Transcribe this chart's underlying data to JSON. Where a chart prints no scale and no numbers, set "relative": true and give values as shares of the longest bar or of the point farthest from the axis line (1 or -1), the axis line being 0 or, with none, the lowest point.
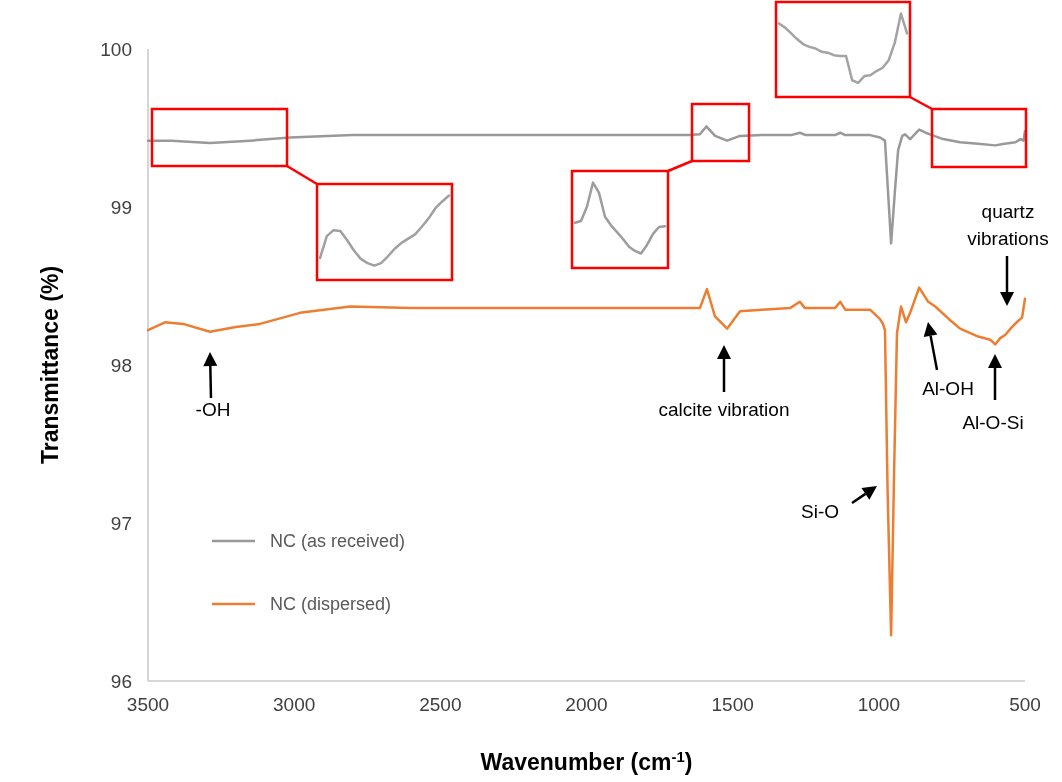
{
  "chart_data": [
    {
      "type": "line",
      "xlabel": "Wavenumber (cm$^{-1}$)",
      "ylabel": "Transmittance (%)",
      "xlim": [
        3500,
        500
      ],
      "ylim": [
        96,
        100
      ],
      "xticks": [
        3500,
        3000,
        2500,
        2000,
        1500,
        1000,
        500
      ],
      "yticks": [
        96,
        97,
        98,
        99,
        100
      ],
      "legend": "bottom left",
      "line_style": "solid",
      "series": [
        {
          "name": "NC (as received)",
          "color": "#999999",
          "x": [
            3500,
            3420,
            3288,
            3150,
            3014,
            2800,
            2500,
            2200,
            2000,
            1800,
            1650,
            1612,
            1590,
            1560,
            1519,
            1475,
            1400,
            1300,
            1270,
            1250,
            1150,
            1132,
            1115,
            1030,
            996,
            979,
            958,
            945,
            934,
            920,
            910,
            893,
            862,
            840,
            825,
            780,
            722,
            660,
            602,
            570,
            533,
            515,
            505,
            500
          ],
          "values": [
            99.42,
            99.42,
            99.405,
            99.42,
            99.44,
            99.455,
            99.455,
            99.455,
            99.455,
            99.455,
            99.455,
            99.46,
            99.51,
            99.45,
            99.42,
            99.45,
            99.455,
            99.455,
            99.47,
            99.455,
            99.455,
            99.47,
            99.455,
            99.455,
            99.44,
            99.42,
            98.77,
            99.1,
            99.36,
            99.45,
            99.46,
            99.43,
            99.49,
            99.47,
            99.46,
            99.43,
            99.41,
            99.4,
            99.39,
            99.4,
            99.41,
            99.43,
            99.42,
            99.48
          ]
        },
        {
          "name": "NC (dispersed)",
          "color": "#ed7d31",
          "x": [
            3500,
            3442,
            3380,
            3288,
            3200,
            3117,
            2980,
            2809,
            2600,
            2400,
            2200,
            2000,
            1800,
            1612,
            1588,
            1561,
            1519,
            1475,
            1400,
            1304,
            1270,
            1253,
            1150,
            1132,
            1115,
            1030,
            996,
            986,
            979,
            970,
            958,
            948,
            938,
            924,
            907,
            893,
            862,
            831,
            807,
            760,
            722,
            660,
            619,
            602,
            585,
            568,
            545,
            523,
            510,
            500
          ],
          "values": [
            98.22,
            98.27,
            98.26,
            98.21,
            98.24,
            98.26,
            98.33,
            98.37,
            98.36,
            98.36,
            98.36,
            98.36,
            98.36,
            98.36,
            98.48,
            98.31,
            98.23,
            98.34,
            98.35,
            98.36,
            98.4,
            98.36,
            98.36,
            98.4,
            98.35,
            98.35,
            98.29,
            98.26,
            98.22,
            97.2,
            96.29,
            97.3,
            98.2,
            98.37,
            98.27,
            98.33,
            98.49,
            98.4,
            98.37,
            98.29,
            98.23,
            98.18,
            98.16,
            98.13,
            98.17,
            98.19,
            98.24,
            98.28,
            98.3,
            98.42
          ]
        }
      ],
      "annotations": [
        "-OH",
        "calcite vibration",
        "Si-O",
        "Al-OH",
        "Al-O-Si",
        "quartz vibrations"
      ]
    },
    {
      "type": "line",
      "relative": true,
      "categories": [
        null,
        null,
        null,
        null,
        null,
        null,
        null,
        null,
        null,
        null,
        null,
        null,
        null,
        null,
        null,
        null,
        null,
        null,
        null,
        null
      ],
      "series": [
        {
          "color": "#a0a0a0",
          "values": [
            0.26,
            0.52,
            0.59,
            0.58,
            0.47,
            0.35,
            0.25,
            0.2,
            0.17,
            0.2,
            0.28,
            0.37,
            0.44,
            0.49,
            0.54,
            0.63,
            0.73,
            0.85,
            0.93,
            1
          ]
        }
      ]
    },
    {
      "type": "line",
      "relative": true,
      "categories": [
        null,
        null,
        null,
        null,
        null,
        null,
        null,
        null,
        null,
        null,
        null,
        null,
        null,
        null,
        null,
        null
      ],
      "series": [
        {
          "color": "#9d9d9d",
          "values": [
            0.53,
            0.55,
            0.72,
            1,
            0.88,
            0.6,
            0.5,
            0.42,
            0.34,
            0.25,
            0.2,
            0.17,
            0.27,
            0.4,
            0.48,
            0.49
          ]
        }
      ]
    },
    {
      "type": "line",
      "relative": true,
      "categories": [
        null,
        null,
        null,
        null,
        null,
        null,
        null,
        null,
        null,
        null,
        null,
        null,
        null,
        null,
        null,
        null,
        null,
        null,
        null,
        null,
        null,
        null
      ],
      "series": [
        {
          "color": "#a3a3a3",
          "values": [
            0.88,
            0.83,
            0.76,
            0.69,
            0.63,
            0.6,
            0.58,
            0.54,
            0.53,
            0.5,
            0.49,
            0.49,
            0.2,
            0.17,
            0.25,
            0.26,
            0.31,
            0.35,
            0.44,
            0.65,
            1,
            0.76
          ]
        }
      ]
    }
  ]
}
